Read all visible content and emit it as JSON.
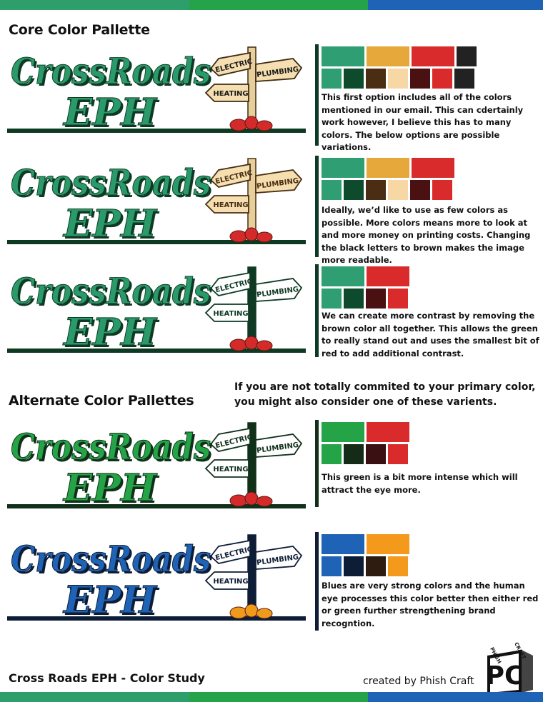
{
  "colors": {
    "bar_green_left": "#2e9e6a",
    "bar_green_mid": "#25a34a",
    "bar_blue": "#1f63b6"
  },
  "core_title": "Core Color Pallette",
  "alt_title": "Alternate Color Pallettes",
  "alt_intro": "If you are not totally commited to your primary color, you might also consider one of these varients.",
  "logo_text": {
    "line1": "CrossRoads",
    "line2": "EPH",
    "sign1": "ELECTRIC",
    "sign2": "PLUMBING",
    "sign3": "HEATING"
  },
  "options": [
    {
      "logo": {
        "text": "#2a9a6a",
        "shadow": "#0e3a24",
        "ground": "#0e3a24",
        "post": "#e6cf9a",
        "post_outline": "#3d2a12",
        "sign": "#f5deb0",
        "sign_text": "#1b1b1b",
        "sign_outline": "#3d2a12",
        "rocks": "#d42a2a"
      },
      "line_color": "#0e3a24",
      "swatch_rows": [
        [
          "#2f9e73",
          "#e6a73b",
          "#d92b2b",
          "#222222"
        ],
        [
          "#2f9e73",
          "#0e4a2c",
          "#4a2d12",
          "#f7d8a4",
          "#4a1012",
          "#d92b2b",
          "#222222"
        ]
      ],
      "description": "This first option includes all of the colors mentioned in our email. This can cdertainly work however, I believe this has to many colors. The below options are possible variations."
    },
    {
      "logo": {
        "text": "#2a9a6a",
        "shadow": "#0e3a24",
        "ground": "#0e3a24",
        "post": "#e6cf9a",
        "post_outline": "#4a2d12",
        "sign": "#f5deb0",
        "sign_text": "#4a2d12",
        "sign_outline": "#4a2d12",
        "rocks": "#d42a2a"
      },
      "line_color": "#0e3a24",
      "swatch_rows": [
        [
          "#2f9e73",
          "#e6a73b",
          "#d92b2b"
        ],
        [
          "#2f9e73",
          "#0e4a2c",
          "#4a2d12",
          "#f7d8a4",
          "#4a1012",
          "#d92b2b"
        ]
      ],
      "description": "Ideally, we’d like to use as few colors as possible. More colors means more to look at and more money on printing costs. Changing the black letters to brown makes the image more readable."
    },
    {
      "logo": {
        "text": "#2a9a6a",
        "shadow": "#0e3a24",
        "ground": "#0e3a24",
        "post": "#0e3a24",
        "post_outline": "#0e3a24",
        "sign": "#ffffff",
        "sign_text": "#0e3a24",
        "sign_outline": "#0e3a24",
        "rocks": "#d42a2a"
      },
      "line_color": "#0e3a24",
      "swatch_rows": [
        [
          "#2f9e73",
          "#d92b2b"
        ],
        [
          "#2f9e73",
          "#0e4a2c",
          "#4a1012",
          "#d92b2b"
        ]
      ],
      "description": "We can create more contrast by removing the brown color all together. This allows the green to really stand out and uses the smallest bit of red to add additional contrast."
    },
    {
      "logo": {
        "text": "#24a446",
        "shadow": "#10301a",
        "ground": "#10301a",
        "post": "#10301a",
        "post_outline": "#10301a",
        "sign": "#ffffff",
        "sign_text": "#10301a",
        "sign_outline": "#10301a",
        "rocks": "#d42a2a"
      },
      "line_color": "#10301a",
      "swatch_rows": [
        [
          "#24a446",
          "#d92b2b"
        ],
        [
          "#24a446",
          "#142b18",
          "#3a1012",
          "#d92b2b"
        ]
      ],
      "description": "This green is a bit more intense which will attract the eye more."
    },
    {
      "logo": {
        "text": "#1f63b6",
        "shadow": "#0e1d36",
        "ground": "#0e1d36",
        "post": "#0e1d36",
        "post_outline": "#0e1d36",
        "sign": "#ffffff",
        "sign_text": "#0e1d36",
        "sign_outline": "#0e1d36",
        "rocks": "#f09a1c"
      },
      "line_color": "#0e1d36",
      "swatch_rows": [
        [
          "#1f63b6",
          "#f39a1c"
        ],
        [
          "#1f63b6",
          "#0e1d36",
          "#2e1c10",
          "#f39a1c"
        ]
      ],
      "description": "Blues are very strong colors and the human eye processes this color better then either red or green further strengthening brand recogntion."
    }
  ],
  "footer_left": "Cross Roads EPH - Color Study",
  "footer_right": "created by Phish Craft",
  "maker_logo": {
    "letters": "PC",
    "top_left": "PHISH",
    "top_right": "CRAFT"
  }
}
